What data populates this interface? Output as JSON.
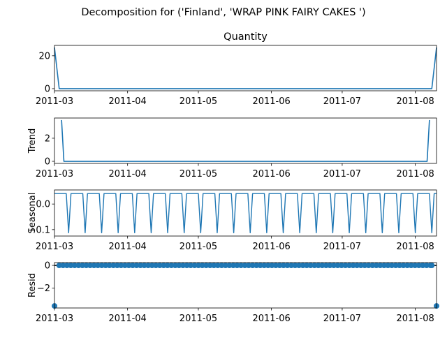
{
  "figure": {
    "suptitle": "Decomposition for ('Finland', 'WRAP PINK FAIRY CAKES ')"
  },
  "colors": {
    "series": "#1f77b4",
    "zero_line": "#000000"
  },
  "chart_data": [
    {
      "type": "line",
      "title": "Quantity",
      "ylabel": "",
      "x_range": [
        "2011-03-01",
        "2011-08-10"
      ],
      "ylim": [
        -1.3,
        26.3
      ],
      "yticks": [
        0,
        20
      ],
      "xticks": [
        "2011-03",
        "2011-04",
        "2011-05",
        "2011-06",
        "2011-07",
        "2011-08"
      ],
      "series": [
        {
          "x": [
            "2011-03-01",
            "2011-03-03",
            "2011-08-08",
            "2011-08-10"
          ],
          "values": [
            25,
            0,
            0,
            25
          ]
        }
      ]
    },
    {
      "type": "line",
      "title": "",
      "ylabel": "Trend",
      "x_range": [
        "2011-03-01",
        "2011-08-10"
      ],
      "ylim": [
        -0.18,
        3.75
      ],
      "yticks": [
        0,
        2
      ],
      "xticks": [
        "2011-03",
        "2011-04",
        "2011-05",
        "2011-06",
        "2011-07",
        "2011-08"
      ],
      "series": [
        {
          "x": [
            "2011-03-04",
            "2011-03-05",
            "2011-08-06",
            "2011-08-07"
          ],
          "values": [
            3.57,
            0,
            0,
            3.57
          ]
        }
      ]
    },
    {
      "type": "line",
      "title": "",
      "ylabel": "Seasonal",
      "x_range": [
        "2011-03-01",
        "2011-08-10"
      ],
      "ylim": [
        -0.125,
        0.055
      ],
      "yticks": [
        0.0,
        -0.1
      ],
      "ytick_labels": [
        "0.0",
        "−0.1"
      ],
      "xticks": [
        "2011-03",
        "2011-04",
        "2011-05",
        "2011-06",
        "2011-07",
        "2011-08"
      ],
      "pattern": {
        "period_days": 7,
        "weekly_values": [
          0.0408,
          0.0408,
          0.0408,
          0.0408,
          0.0408,
          0.0408,
          -0.1122
        ]
      }
    },
    {
      "type": "scatter",
      "title": "",
      "ylabel": "Resid",
      "x_range": [
        "2011-03-01",
        "2011-08-10"
      ],
      "ylim": [
        -3.75,
        0.25
      ],
      "yticks": [
        0,
        -2
      ],
      "ytick_labels": [
        "0",
        "−2"
      ],
      "xticks": [
        "2011-03",
        "2011-04",
        "2011-05",
        "2011-06",
        "2011-07",
        "2011-08"
      ],
      "zero_line": true,
      "series": [
        {
          "outliers": [
            {
              "x": "2011-03-01",
              "value": -3.57
            },
            {
              "x": "2011-08-10",
              "value": -3.57
            }
          ],
          "baseline": {
            "value": 0,
            "from": "2011-03-03",
            "to": "2011-08-08",
            "step_days": 1.64
          }
        }
      ]
    }
  ]
}
